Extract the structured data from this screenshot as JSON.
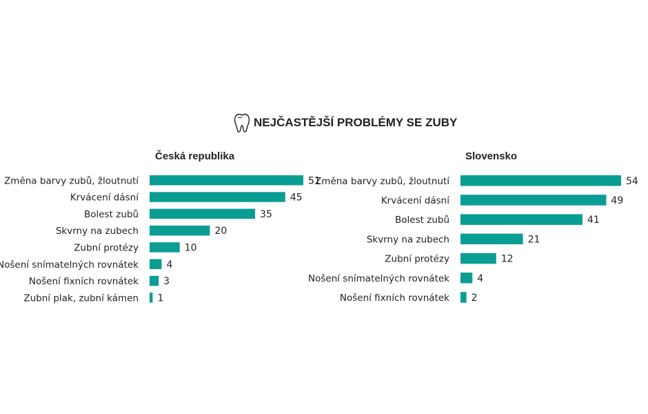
{
  "title": "NEJČASTĚJŠÍ PROBLÉMY SE ZUBY",
  "title_icon": "tooth-icon",
  "colors": {
    "bar": "#0a9d94",
    "text": "#231f20"
  },
  "chart_data": [
    {
      "type": "bar",
      "orientation": "horizontal",
      "title": "Česká republika",
      "categories": [
        "Změna barvy zubů, žloutnutí",
        "Krvácení dásní",
        "Bolest zubů",
        "Skvrny na zubech",
        "Zubní protézy",
        "Nošení snímatelných rovnátek",
        "Nošení fixních rovnátek",
        "Zubní plak, zubní kámen"
      ],
      "values": [
        51,
        45,
        35,
        20,
        10,
        4,
        3,
        1
      ],
      "xlim": [
        0,
        51
      ],
      "grid": false,
      "legend": "none"
    },
    {
      "type": "bar",
      "orientation": "horizontal",
      "title": "Slovensko",
      "categories": [
        "Změna barvy zubů, žloutnutí",
        "Krvácení dásní",
        "Bolest zubů",
        "Skvrny na zubech",
        "Zubní protézy",
        "Nošení snímatelných rovnátek",
        "Nošení fixních rovnátek"
      ],
      "values": [
        54,
        49,
        41,
        21,
        12,
        4,
        2
      ],
      "xlim": [
        0,
        54
      ],
      "grid": false,
      "legend": "none"
    }
  ]
}
